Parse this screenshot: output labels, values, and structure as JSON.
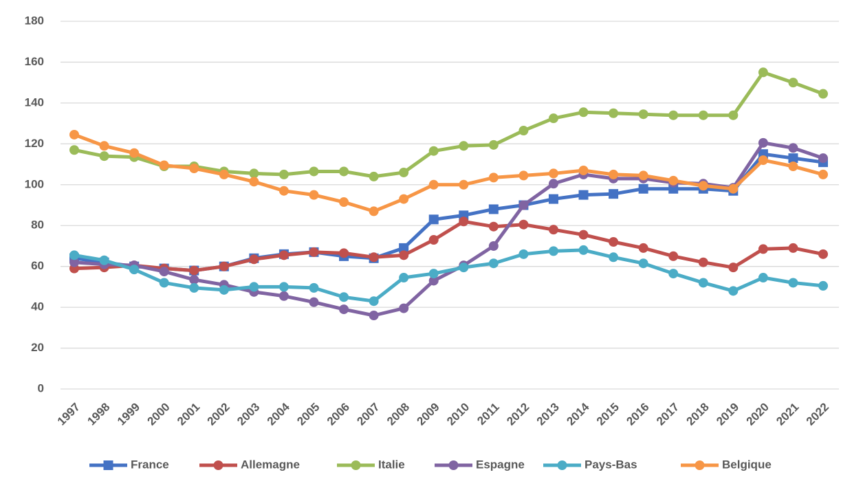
{
  "chart_data": {
    "type": "line",
    "categories": [
      "1997",
      "1998",
      "1999",
      "2000",
      "2001",
      "2002",
      "2003",
      "2004",
      "2005",
      "2006",
      "2007",
      "2008",
      "2009",
      "2010",
      "2011",
      "2012",
      "2013",
      "2014",
      "2015",
      "2016",
      "2017",
      "2018",
      "2019",
      "2020",
      "2021",
      "2022"
    ],
    "series": [
      {
        "name": "France",
        "color": "#4472c4",
        "marker": "square",
        "values": [
          64,
          62,
          60,
          59,
          58,
          60,
          64,
          66,
          67,
          65,
          64,
          69,
          83,
          85,
          88,
          90,
          93,
          95,
          95.5,
          98,
          98,
          98,
          97,
          115,
          113,
          111
        ]
      },
      {
        "name": "Allemagne",
        "color": "#c0504d",
        "marker": "circle",
        "values": [
          59,
          59.5,
          60.5,
          59,
          58,
          60,
          63.5,
          65.5,
          67,
          66.5,
          64.5,
          65.5,
          73,
          82,
          79.5,
          80.5,
          78,
          75.5,
          72,
          69,
          65,
          62,
          59.5,
          68.5,
          69,
          66
        ]
      },
      {
        "name": "Italie",
        "color": "#9bbb59",
        "marker": "circle",
        "values": [
          117,
          114,
          113.5,
          109,
          109,
          106.5,
          105.5,
          105,
          106.5,
          106.5,
          104,
          106,
          116.5,
          119,
          119.5,
          126.5,
          132.5,
          135.5,
          135,
          134.5,
          134,
          134,
          134,
          155,
          150,
          144.5
        ]
      },
      {
        "name": "Espagne",
        "color": "#8064a2",
        "marker": "circle",
        "values": [
          62,
          61,
          60.5,
          57.5,
          53.5,
          51,
          47.5,
          45.5,
          42.5,
          39,
          36,
          39.5,
          53,
          60.5,
          70,
          90,
          100.5,
          105,
          103,
          103,
          101,
          100.5,
          98.5,
          120.5,
          118,
          113
        ]
      },
      {
        "name": "Pays-Bas",
        "color": "#4bacc6",
        "marker": "circle",
        "values": [
          65.5,
          63,
          58.5,
          52,
          49.5,
          48.5,
          50,
          50,
          49.5,
          45,
          43,
          54.5,
          56.5,
          59.5,
          61.5,
          66,
          67.5,
          68,
          64.5,
          61.5,
          56.5,
          52,
          48,
          54.5,
          52,
          50.5
        ]
      },
      {
        "name": "Belgique",
        "color": "#f79646",
        "marker": "circle",
        "values": [
          124.5,
          119,
          115.5,
          109.5,
          108,
          105,
          101.5,
          97,
          95,
          91.5,
          87,
          93,
          100,
          100,
          103.5,
          104.5,
          105.5,
          107,
          105,
          104.5,
          102,
          99.5,
          98,
          112,
          109,
          105
        ]
      }
    ],
    "ylim": [
      0,
      180
    ],
    "yticks": [
      0,
      20,
      40,
      60,
      80,
      100,
      120,
      140,
      160,
      180
    ],
    "grid": true,
    "legend": "bottom"
  }
}
